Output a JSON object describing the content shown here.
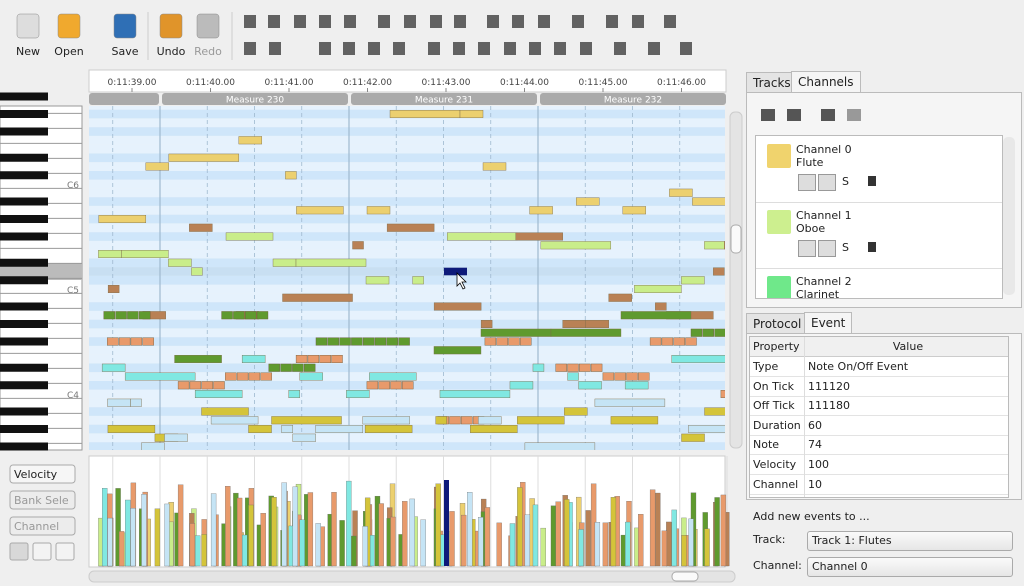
{
  "toolbar": {
    "buttons": [
      "New",
      "Open",
      "Save",
      "Undo",
      "Redo"
    ]
  },
  "timeline": {
    "times": [
      "0:11:39.00",
      "0:11:40.00",
      "0:11:41.00",
      "0:11:42.00",
      "0:11:43.00",
      "0:11:44.00",
      "0:11:45.00",
      "0:11:46.00"
    ],
    "measures": [
      "Measure 230",
      "Measure 231",
      "Measure 232"
    ]
  },
  "piano": {
    "labels": [
      "C6",
      "C5",
      "C4"
    ]
  },
  "velocity_panel": {
    "controls": [
      "Velocity",
      "Bank Sele",
      "Channel"
    ]
  },
  "tabs_top": [
    "Tracks",
    "Channels"
  ],
  "channels": [
    {
      "name": "Channel 0",
      "instrument": "Flute",
      "color": "#f0d36d"
    },
    {
      "name": "Channel 1",
      "instrument": "Oboe",
      "color": "#cdef8f"
    },
    {
      "name": "Channel 2",
      "instrument": "Clarinet",
      "color": "#6fe88a"
    }
  ],
  "solo_label": "S",
  "tabs_bottom": [
    "Protocol",
    "Event"
  ],
  "event_table": {
    "header": [
      "Property",
      "Value"
    ],
    "rows": [
      [
        "Type",
        "Note On/Off Event"
      ],
      [
        "On Tick",
        "111120"
      ],
      [
        "Off Tick",
        "111180"
      ],
      [
        "Duration",
        "60"
      ],
      [
        "Note",
        "74"
      ],
      [
        "Velocity",
        "100"
      ],
      [
        "Channel",
        "10"
      ]
    ]
  },
  "add_events": {
    "title": "Add new events to ...",
    "fields": [
      {
        "label": "Track:",
        "value": "Track 1: Flutes"
      },
      {
        "label": "Channel:",
        "value": "Channel 0"
      }
    ]
  }
}
